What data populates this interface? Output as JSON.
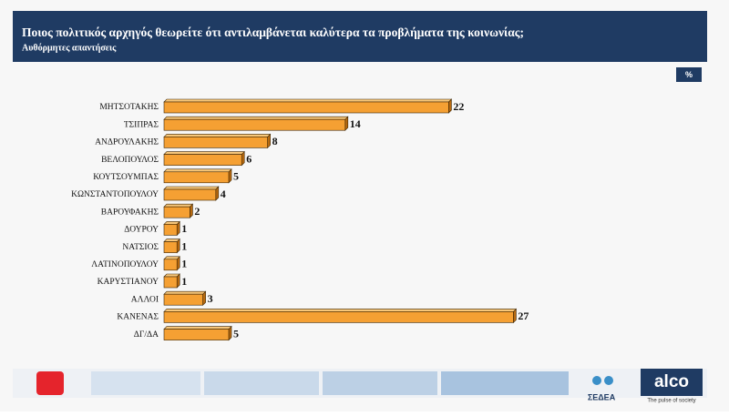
{
  "chart_data": {
    "type": "bar",
    "orientation": "horizontal",
    "title": "Ποιος πολιτικός αρχηγός θεωρείτε ότι αντιλαμβάνεται καλύτερα τα προβλήματα της κοινωνίας;",
    "subtitle": "Αυθόρμητες απαντήσεις",
    "unit": "%",
    "categories": [
      "ΜΗΤΣΟΤΑΚΗΣ",
      "ΤΣΙΠΡΑΣ",
      "ΑΝΔΡΟΥΛΑΚΗΣ",
      "ΒΕΛΟΠΟΥΛΟΣ",
      "ΚΟΥΤΣΟΥΜΠΑΣ",
      "ΚΩΝΣΤΑΝΤΟΠΟΥΛΟΥ",
      "ΒΑΡΟΥΦΑΚΗΣ",
      "ΔΟΥΡΟΥ",
      "ΝΑΤΣΙΟΣ",
      "ΛΑΤΙΝΟΠΟΥΛΟΥ",
      "ΚΑΡΥΣΤΙΑΝΟΥ",
      "ΑΛΛΟΙ",
      "ΚΑΝΕΝΑΣ",
      "ΔΓ/ΔΑ"
    ],
    "values": [
      22,
      14,
      8,
      6,
      5,
      4,
      2,
      1,
      1,
      1,
      1,
      3,
      27,
      5
    ],
    "color": "#f5a033"
  },
  "branding": {
    "logo": "alco",
    "tagline": "The pulse of society",
    "partner": "ΣΕΔΕΑ"
  }
}
